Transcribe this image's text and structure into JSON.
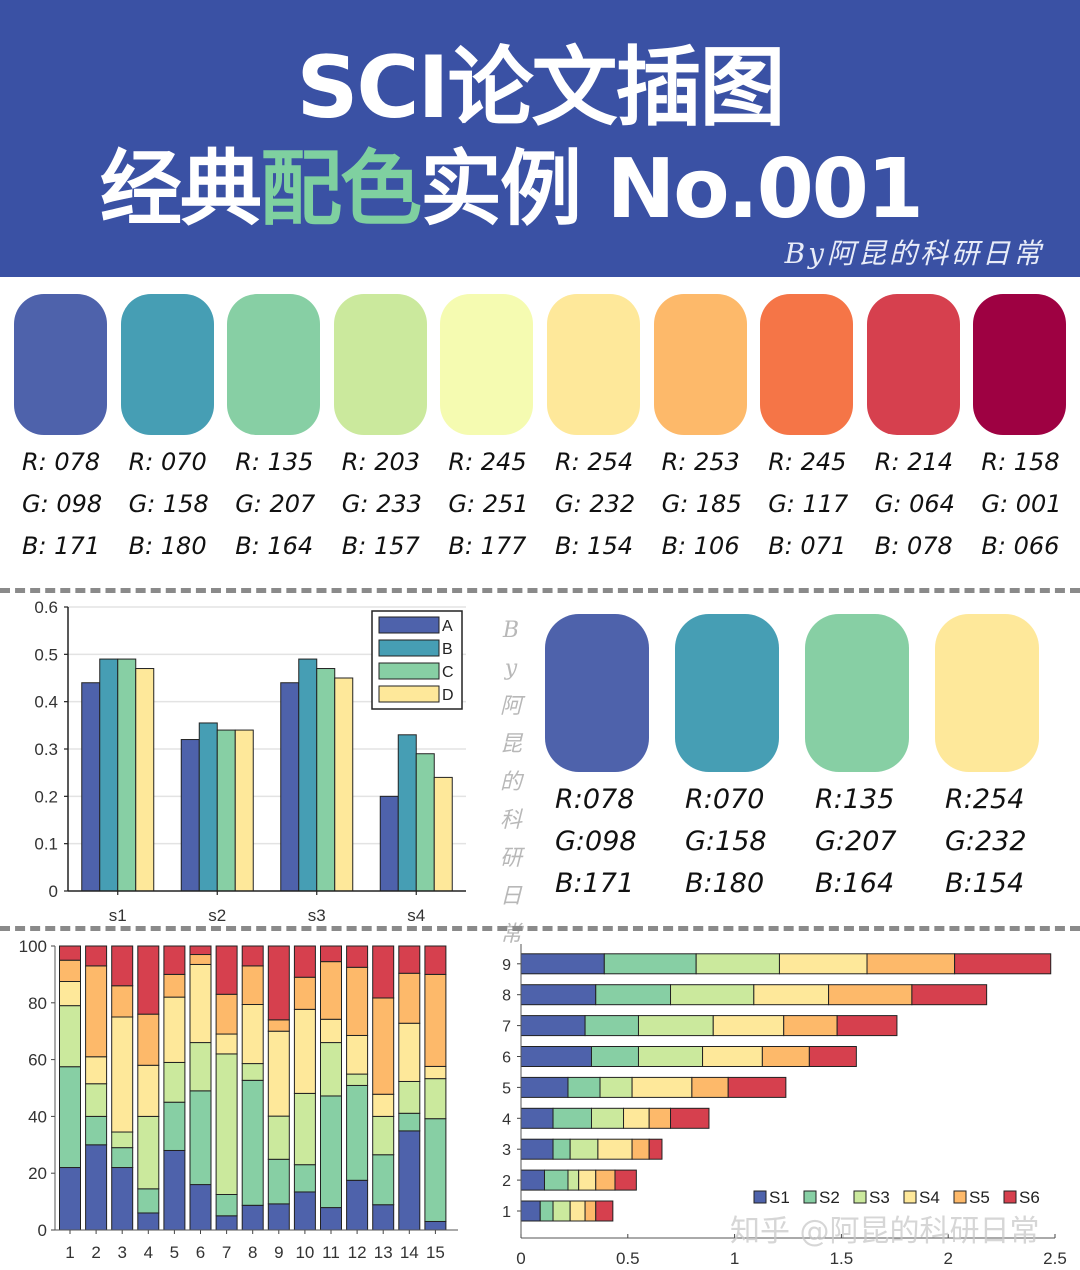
{
  "header": {
    "title_line1": "SCI论文插图",
    "title_line2_pre": "经典",
    "title_line2_highlight": "配色",
    "title_line2_post": "实例 No.001",
    "byline": "By阿昆的科研日常",
    "bg_color": "#3A51A4",
    "highlight_color": "#7FD0A0"
  },
  "palette": [
    {
      "hex": "#4E62AB",
      "r": "R: 078",
      "g": "G: 098",
      "b": "B: 171"
    },
    {
      "hex": "#469EB4",
      "r": "R: 070",
      "g": "G: 158",
      "b": "B: 180"
    },
    {
      "hex": "#87CFA4",
      "r": "R: 135",
      "g": "G: 207",
      "b": "B: 164"
    },
    {
      "hex": "#CBE99D",
      "r": "R: 203",
      "g": "G: 233",
      "b": "B: 157"
    },
    {
      "hex": "#F5FBB1",
      "r": "R: 245",
      "g": "G: 251",
      "b": "B: 177"
    },
    {
      "hex": "#FEE89A",
      "r": "R: 254",
      "g": "G: 232",
      "b": "B: 154"
    },
    {
      "hex": "#FDB96A",
      "r": "R: 253",
      "g": "G: 185",
      "b": "B: 106"
    },
    {
      "hex": "#F57547",
      "r": "R: 245",
      "g": "G: 117",
      "b": "B: 071"
    },
    {
      "hex": "#D6404E",
      "r": "R: 214",
      "g": "G: 064",
      "b": "B: 078"
    },
    {
      "hex": "#9E0142",
      "r": "R: 158",
      "g": "G: 001",
      "b": "B: 066"
    }
  ],
  "subset_palette": [
    {
      "hex": "#4E62AB",
      "r": "R:078",
      "g": "G:098",
      "b": "B:171"
    },
    {
      "hex": "#469EB4",
      "r": "R:070",
      "g": "G:158",
      "b": "B:180"
    },
    {
      "hex": "#87CFA4",
      "r": "R:135",
      "g": "G:207",
      "b": "B:164"
    },
    {
      "hex": "#FEE89A",
      "r": "R:254",
      "g": "G:232",
      "b": "B:154"
    }
  ],
  "vertical_watermark": [
    "B",
    "y",
    "阿",
    "昆",
    "的",
    "科",
    "研",
    "日",
    "常"
  ],
  "footer_watermark": "知乎 @阿昆的科研日常",
  "chart_data": [
    {
      "type": "bar",
      "title": "",
      "xlabel": "",
      "ylabel": "",
      "categories": [
        "s1",
        "s2",
        "s3",
        "s4"
      ],
      "series": [
        {
          "name": "A",
          "color": "#4E62AB",
          "values": [
            0.44,
            0.32,
            0.44,
            0.2
          ]
        },
        {
          "name": "B",
          "color": "#469EB4",
          "values": [
            0.49,
            0.355,
            0.49,
            0.33
          ]
        },
        {
          "name": "C",
          "color": "#87CFA4",
          "values": [
            0.49,
            0.34,
            0.47,
            0.29
          ]
        },
        {
          "name": "D",
          "color": "#FEE89A",
          "values": [
            0.47,
            0.34,
            0.45,
            0.24
          ]
        }
      ],
      "ylim": [
        0,
        0.6
      ],
      "yticks": [
        "0",
        "0.1",
        "0.2",
        "0.3",
        "0.4",
        "0.5",
        "0.6"
      ],
      "grid": true,
      "legend_position": "upper right"
    },
    {
      "type": "bar",
      "stacked": true,
      "title": "",
      "xlabel": "",
      "ylabel": "",
      "categories": [
        "1",
        "2",
        "3",
        "4",
        "5",
        "6",
        "7",
        "8",
        "9",
        "10",
        "11",
        "12",
        "13",
        "14",
        "15"
      ],
      "series": [
        {
          "name": "S1",
          "color": "#4E62AB",
          "values": [
            22,
            30,
            22,
            6,
            28,
            16,
            5,
            8.7,
            9.2,
            13.4,
            7.9,
            17.5,
            8.9,
            34.9,
            3
          ]
        },
        {
          "name": "S2",
          "color": "#87CFA4",
          "values": [
            35.5,
            10,
            7,
            8.5,
            17,
            33,
            7.5,
            44,
            15.7,
            9.6,
            39.3,
            33.4,
            17.6,
            6.2,
            36.2
          ]
        },
        {
          "name": "S3",
          "color": "#CBE99D",
          "values": [
            21.5,
            11.5,
            5.5,
            25.5,
            14,
            17,
            49.5,
            5.9,
            15.2,
            25.1,
            18.8,
            4,
            13.5,
            11.2,
            14.1
          ]
        },
        {
          "name": "S4",
          "color": "#FEE89A",
          "values": [
            8.5,
            9.5,
            40.5,
            18,
            23,
            27.5,
            7,
            20.8,
            29.9,
            29.6,
            8.2,
            13.6,
            7.8,
            20.5,
            4.3
          ]
        },
        {
          "name": "S5",
          "color": "#FDB96A",
          "values": [
            7.5,
            32,
            11,
            18,
            8,
            3.5,
            14,
            13.6,
            4,
            11.3,
            20.3,
            24,
            33.9,
            17.6,
            32.4
          ]
        },
        {
          "name": "S6",
          "color": "#D6404E",
          "values": [
            5,
            7,
            14,
            24,
            10,
            3,
            17,
            7,
            26,
            11,
            5.5,
            7.5,
            18.3,
            9.6,
            10
          ]
        }
      ],
      "ylim": [
        0,
        100
      ],
      "yticks": [
        "0",
        "20",
        "40",
        "60",
        "80",
        "100"
      ],
      "grid": false
    },
    {
      "type": "bar",
      "orientation": "horizontal",
      "stacked": true,
      "title": "",
      "xlabel": "",
      "ylabel": "",
      "categories": [
        "1",
        "2",
        "3",
        "4",
        "5",
        "6",
        "7",
        "8",
        "9"
      ],
      "series": [
        {
          "name": "S1",
          "color": "#4E62AB",
          "values": [
            0.09,
            0.11,
            0.15,
            0.15,
            0.22,
            0.33,
            0.3,
            0.35,
            0.39
          ]
        },
        {
          "name": "S2",
          "color": "#87CFA4",
          "values": [
            0.06,
            0.11,
            0.08,
            0.18,
            0.15,
            0.22,
            0.25,
            0.35,
            0.43
          ]
        },
        {
          "name": "S3",
          "color": "#CBE99D",
          "values": [
            0.08,
            0.05,
            0.13,
            0.15,
            0.15,
            0.3,
            0.35,
            0.39,
            0.39
          ]
        },
        {
          "name": "S4",
          "color": "#FEE89A",
          "values": [
            0.07,
            0.08,
            0.16,
            0.12,
            0.28,
            0.28,
            0.33,
            0.35,
            0.41
          ]
        },
        {
          "name": "S5",
          "color": "#FDB96A",
          "values": [
            0.05,
            0.09,
            0.08,
            0.1,
            0.17,
            0.22,
            0.25,
            0.39,
            0.41
          ]
        },
        {
          "name": "S6",
          "color": "#D6404E",
          "values": [
            0.08,
            0.1,
            0.06,
            0.18,
            0.27,
            0.22,
            0.28,
            0.35,
            0.45
          ]
        }
      ],
      "xlim": [
        0,
        2.5
      ],
      "xticks": [
        "0",
        "0.5",
        "1",
        "1.5",
        "2",
        "2.5"
      ],
      "legend_position": "lower right, horizontal"
    }
  ]
}
